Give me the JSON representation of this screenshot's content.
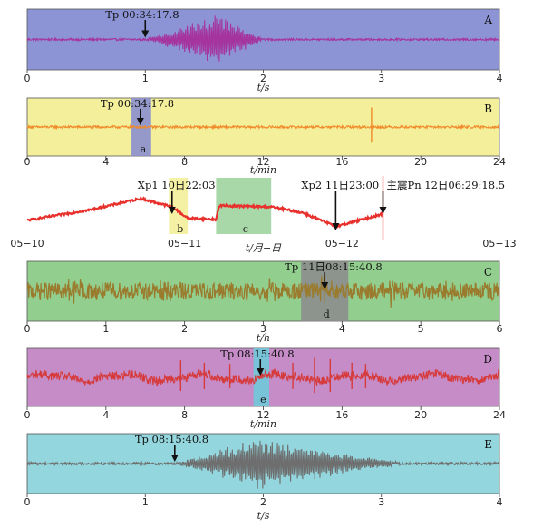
{
  "chart_data": [
    {
      "id": "A",
      "type": "line",
      "label": "A",
      "background": "#8c94d6",
      "line_color": "#a6349e",
      "x_range": [
        0,
        4
      ],
      "x_ticks": [
        "0",
        "1",
        "2",
        "3",
        "4"
      ],
      "xlabel": "t/s",
      "annotations": [
        {
          "text": "Tp 00:34:17.8",
          "x": 1.0
        }
      ],
      "waveform": {
        "type": "burst",
        "onset": 1.0,
        "peak": 1.62,
        "end": 2.0,
        "amplitude": 1.0,
        "noise": 0.04
      }
    },
    {
      "id": "B",
      "type": "line",
      "label": "B",
      "background": "#f4ef9a",
      "line_color": "#f08a2a",
      "x_range": [
        0,
        24
      ],
      "x_ticks": [
        "0",
        "4",
        "8",
        "12",
        "16",
        "20",
        "24"
      ],
      "xlabel": "t/min",
      "annotations": [
        {
          "text": "Tp 00:34:17.8",
          "x": 5.75
        }
      ],
      "windows": [
        {
          "from": 5.3,
          "to": 6.3,
          "color": "#8a8fcf",
          "label": "a"
        }
      ],
      "spikes": [
        {
          "x": 17.5,
          "height": 0.8
        }
      ],
      "waveform": {
        "type": "flat",
        "noise": 0.05
      }
    },
    {
      "id": "trend",
      "type": "line",
      "label": "",
      "background": "#ffffff",
      "line_color": "#e8302c",
      "x_range": [
        0,
        3
      ],
      "x_ticks": [
        "05−10",
        "05−11",
        "05−12",
        "05−13"
      ],
      "xlabel": "t/月−日",
      "annotations": [
        {
          "text": "Xp1 10日22:03",
          "x": 0.92
        },
        {
          "text": "Xp2 11日23:00",
          "x": 1.96
        },
        {
          "text": "主震Pn 12日06:29:18.5",
          "x": 2.26
        }
      ],
      "windows": [
        {
          "from": 0.9,
          "to": 1.02,
          "color": "#f4ef9a",
          "label": "b"
        },
        {
          "from": 1.2,
          "to": 1.55,
          "color": "#9fd39f",
          "label": "c"
        }
      ],
      "trend_points": [
        [
          0,
          0.2
        ],
        [
          0.4,
          0.45
        ],
        [
          0.72,
          0.72
        ],
        [
          0.92,
          0.52
        ],
        [
          1.02,
          0.25
        ],
        [
          1.2,
          0.22
        ],
        [
          1.22,
          0.55
        ],
        [
          1.55,
          0.52
        ],
        [
          1.75,
          0.38
        ],
        [
          1.96,
          0.05
        ],
        [
          2.26,
          0.35
        ]
      ]
    },
    {
      "id": "C",
      "type": "line",
      "label": "C",
      "background": "#92cf8e",
      "line_color": "#9a7b2e",
      "x_range": [
        0,
        6
      ],
      "x_ticks": [
        "0",
        "1",
        "2",
        "3",
        "4",
        "5",
        "6"
      ],
      "xlabel": "t/h",
      "annotations": [
        {
          "text": "Tp 11日08:15:40.8",
          "x": 3.78
        }
      ],
      "windows": [
        {
          "from": 3.48,
          "to": 4.08,
          "color": "#8d8d8d",
          "label": "d"
        }
      ],
      "waveform": {
        "type": "noisy",
        "noise": 0.35,
        "events": [
          0.6,
          1.72,
          3.05,
          3.78,
          4.6,
          5.4
        ]
      }
    },
    {
      "id": "D",
      "type": "line",
      "label": "D",
      "background": "#c58cc7",
      "line_color": "#d63a3a",
      "x_range": [
        0,
        24
      ],
      "x_ticks": [
        "0",
        "4",
        "8",
        "12",
        "16",
        "20",
        "24"
      ],
      "xlabel": "t/min",
      "annotations": [
        {
          "text": "Tp 08:15:40.8",
          "x": 11.85
        }
      ],
      "windows": [
        {
          "from": 11.5,
          "to": 12.3,
          "color": "#6fc9d9",
          "label": "e"
        }
      ],
      "spikes": [
        {
          "x": 7.8,
          "height": 0.7
        },
        {
          "x": 9.0,
          "height": 0.6
        },
        {
          "x": 10.3,
          "height": 0.55
        },
        {
          "x": 13.5,
          "height": 0.6
        },
        {
          "x": 14.6,
          "height": 0.8
        },
        {
          "x": 15.4,
          "height": 0.75
        },
        {
          "x": 16.5,
          "height": 0.6
        },
        {
          "x": 17.2,
          "height": 0.55
        }
      ],
      "waveform": {
        "type": "wavy",
        "noise": 0.18
      }
    },
    {
      "id": "E",
      "type": "line",
      "label": "E",
      "background": "#93d6dd",
      "line_color": "#6e6e6e",
      "x_range": [
        0,
        4
      ],
      "x_ticks": [
        "0",
        "1",
        "2",
        "3",
        "4"
      ],
      "xlabel": "t/s",
      "annotations": [
        {
          "text": "Tp 08:15:40.8",
          "x": 1.25
        }
      ],
      "waveform": {
        "type": "burst",
        "onset": 1.25,
        "peak": 1.95,
        "end": 3.2,
        "amplitude": 1.0,
        "noise": 0.05
      }
    }
  ]
}
